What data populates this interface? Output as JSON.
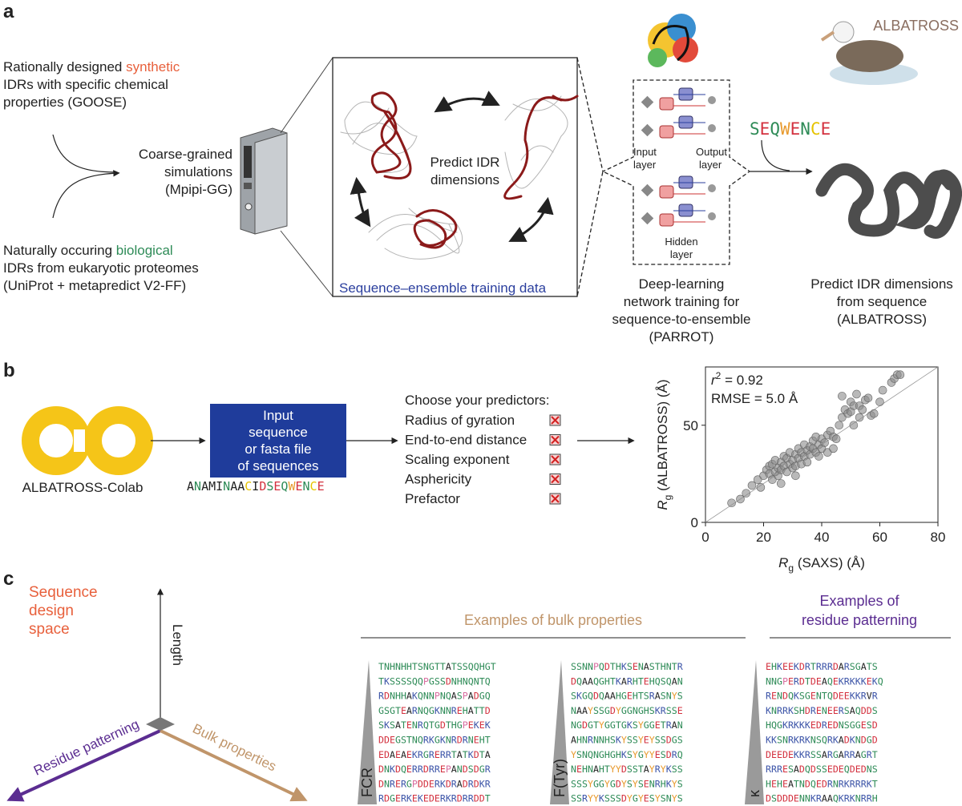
{
  "panel_a": {
    "label": "a",
    "synthetic": {
      "start": "Rationally designed",
      "highlight": "synthetic",
      "line2": "IDRs with specific chemical",
      "line3": "properties (GOOSE)"
    },
    "biological": {
      "start": "Naturally occuring",
      "highlight": "biological",
      "line2": "IDRs from eukaryotic proteomes",
      "line3": "(UniProt + metapredict V2-FF)"
    },
    "simulation": [
      "Coarse-grained",
      "simulations",
      "(Mpipi-GG)"
    ],
    "center": [
      "Predict IDR",
      "dimensions"
    ],
    "training_data": "Sequence–ensemble training data",
    "network": {
      "input": [
        "Input",
        "layer"
      ],
      "output": [
        "Output",
        "layer"
      ],
      "hidden": [
        "Hidden",
        "layer"
      ]
    },
    "parrot_caption": [
      "Deep-learning",
      "network training for",
      "sequence-to-ensemble",
      "(PARROT)"
    ],
    "sequence": "SEQWENCE",
    "albatross_name": "ALBATROSS",
    "albatross_caption": [
      "Predict IDR dimensions",
      "from sequence",
      "(ALBATROSS)"
    ]
  },
  "panel_b": {
    "label": "b",
    "colab": "ALBATROSS-Colab",
    "input_box": [
      "Input",
      "sequence",
      "or fasta file",
      "of sequences"
    ],
    "example_sequence": "ANAMINAACIDSEQWENCE",
    "predictors_title": "Choose your predictors:",
    "predictors": [
      "Radius of gyration",
      "End-to-end distance",
      "Scaling exponent",
      "Asphericity",
      "Prefactor"
    ]
  },
  "chart_data": {
    "type": "scatter",
    "stat_symbol": "r",
    "stat_superscript": "2",
    "stat_value": "= 0.92",
    "rmse": "RMSE = 5.0 Å",
    "xlabel": {
      "symbol": "R",
      "subscript": "g",
      "text": "(SAXS) (Å)"
    },
    "ylabel": {
      "symbol": "R",
      "subscript": "g",
      "text": "(ALBATROSS) (Å)"
    },
    "xlim": [
      0,
      80
    ],
    "ylim": [
      0,
      80
    ],
    "xticks": [
      0,
      20,
      40,
      60,
      80
    ],
    "yticks": [
      0,
      50
    ],
    "color": "#8a8a8a",
    "x": [
      9,
      12,
      14,
      16,
      18,
      19,
      20,
      21,
      22,
      22,
      23,
      23,
      24,
      24,
      25,
      25,
      26,
      26,
      27,
      27,
      28,
      28,
      29,
      29,
      30,
      30,
      31,
      31,
      32,
      32,
      33,
      33,
      34,
      34,
      35,
      35,
      36,
      36,
      37,
      37,
      38,
      38,
      39,
      39,
      40,
      40,
      41,
      42,
      42,
      43,
      44,
      45,
      46,
      47,
      48,
      49,
      50,
      50,
      51,
      52,
      53,
      54,
      53,
      55,
      56,
      57,
      58,
      60,
      61,
      64,
      65,
      66,
      67,
      47,
      51,
      44,
      26,
      31
    ],
    "y": [
      10,
      12,
      15,
      19,
      22,
      18,
      24,
      27,
      25,
      29,
      30,
      22,
      26,
      32,
      28,
      24,
      31,
      27,
      29,
      34,
      26,
      33,
      30,
      36,
      28,
      32,
      35,
      29,
      38,
      33,
      30,
      36,
      34,
      40,
      37,
      31,
      39,
      35,
      42,
      38,
      36,
      44,
      40,
      34,
      43,
      38,
      41,
      45,
      36,
      47,
      44,
      43,
      50,
      54,
      58,
      56,
      62,
      57,
      60,
      66,
      60,
      58,
      54,
      63,
      64,
      55,
      56,
      62,
      68,
      72,
      74,
      76,
      76,
      65,
      50,
      38,
      20,
      24
    ]
  },
  "panel_c": {
    "label": "c",
    "design_space": [
      "Sequence",
      "design",
      "space"
    ],
    "axes": {
      "up": "Length",
      "left": "Residue patterning",
      "right": "Bulk properties"
    },
    "bulk_header": "Examples of bulk properties",
    "patterning_header": [
      "Examples of",
      "residue patterning"
    ],
    "blocks": [
      {
        "label": "FCR",
        "sequences": [
          "TNHNHHTSNGTTATSSQQHGT",
          "TKSSSSQQPGSSDNHNQNTQ",
          "RDNHHAKQNNPNQASPADGQ",
          "GSGTEARNQGKNNREHATTD",
          "SKSATENRQTGDTHGPEKEK",
          "DDEGSTNQRKGKNRDRNEHT",
          "EDAEAEKRGRERRTATKDTA",
          "DNKDQERRDRREPANDSDGR",
          "DNRERGPDDERKDRADRDKR",
          "RDGERKEKEDERKRDRRDDT"
        ]
      },
      {
        "label": "F(Tyr)",
        "sequences": [
          "SSNNPQDTHKSENASTHNTR",
          "DQAAQGHTKARHTEHQSQAN",
          "SKGQDQAAHGEHTSRASNYS",
          "NAAYSSGDYGGNGHSKRSSE",
          "NGDGTYGGTGKSYGGETRAN",
          "AHNRNNHSKYSSYEYSSDGS",
          "YSNQNGHGHKSYGYYESDRQ",
          "NEHNAHTYYDSSTAYRYKSS",
          "SSSYGGYGDYSYSENRHKYS",
          "SSRYYKSSSDYGYESYSNYS"
        ]
      },
      {
        "label": "κ",
        "sequences": [
          "EHKEEKDRTRRRDARSGATS",
          "NNGPERDTDEAQEKRKKKEKQ",
          "RENDQKSGENTQDEEKKRVR",
          "KNRRKSHDRENEERSAQDDS",
          "HQGKRKKKEDREDNSGGESD",
          "KKSNRKRKNSQRKADKNDGD",
          "DEEDEKKRSSARGARRAGRT",
          "RRRESADQDSSEDEQDEDNS",
          "HEHEATNDQEDRNRKRRRKT",
          "DSDDDENNKRAAQKRKNRRH"
        ]
      }
    ]
  }
}
